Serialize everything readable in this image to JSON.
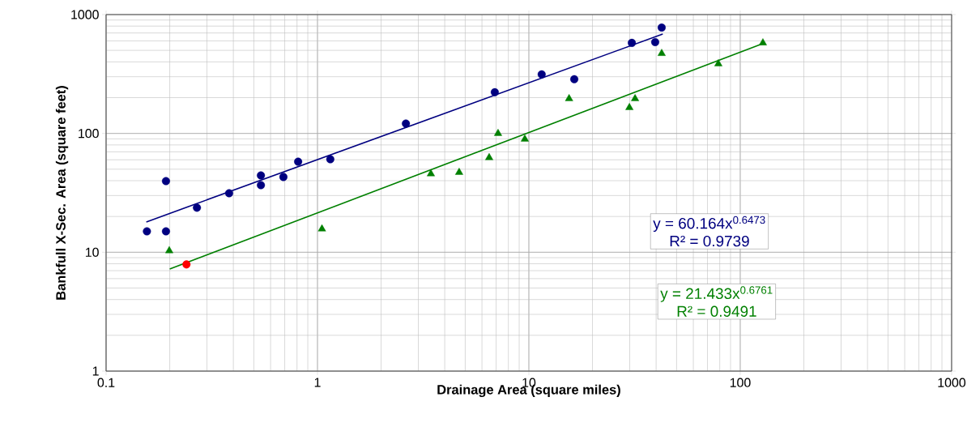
{
  "chart_data": {
    "type": "scatter",
    "xlabel": "Drainage Area (square miles)",
    "ylabel": "Bankfull X-Sec. Area (square feet)",
    "log": "xy",
    "grid": true,
    "xlim": [
      0.1,
      1000
    ],
    "ylim": [
      1,
      1000
    ],
    "xticks": [
      0.1,
      1,
      10,
      100,
      1000
    ],
    "yticks": [
      1,
      10,
      100,
      1000
    ],
    "series": [
      {
        "type": "scatter",
        "marker": "circle",
        "color": "#000080",
        "x": [
          0.156,
          0.192,
          0.192,
          0.269,
          0.382,
          0.54,
          0.54,
          0.69,
          0.81,
          1.15,
          2.62,
          6.9,
          11.5,
          16.4,
          30.7,
          39.6,
          42.5
        ],
        "values": [
          15.0,
          39.7,
          15.0,
          23.7,
          31.4,
          44.3,
          36.7,
          43,
          57.8,
          60.6,
          121,
          222,
          314,
          286,
          578,
          587,
          778
        ]
      },
      {
        "type": "scatter",
        "marker": "circle",
        "color": "#ff0000",
        "x": [
          0.24
        ],
        "values": [
          7.9
        ]
      },
      {
        "type": "scatter",
        "marker": "triangle",
        "color": "#008000",
        "x": [
          0.199,
          1.05,
          3.44,
          4.68,
          6.49,
          7.15,
          9.57,
          15.5,
          29.9,
          31.8,
          42.5,
          78.8,
          128
        ],
        "values": [
          10.3,
          15.7,
          45.7,
          47,
          62.5,
          100,
          89.6,
          196,
          165,
          196,
          471,
          385,
          578
        ]
      },
      {
        "type": "line",
        "marker": "none",
        "color": "#000080",
        "x": [
          0.155,
          43
        ],
        "values": [
          18.0,
          686
        ]
      },
      {
        "type": "line",
        "marker": "none",
        "color": "#008000",
        "x": [
          0.2,
          128
        ],
        "values": [
          7.22,
          570
        ]
      }
    ],
    "annotations": [
      "y = 60.164x$^{0.6473}$",
      "R² = 0.9739",
      "y = 21.433x$^{0.6761}$",
      "R² = 0.9491"
    ]
  }
}
